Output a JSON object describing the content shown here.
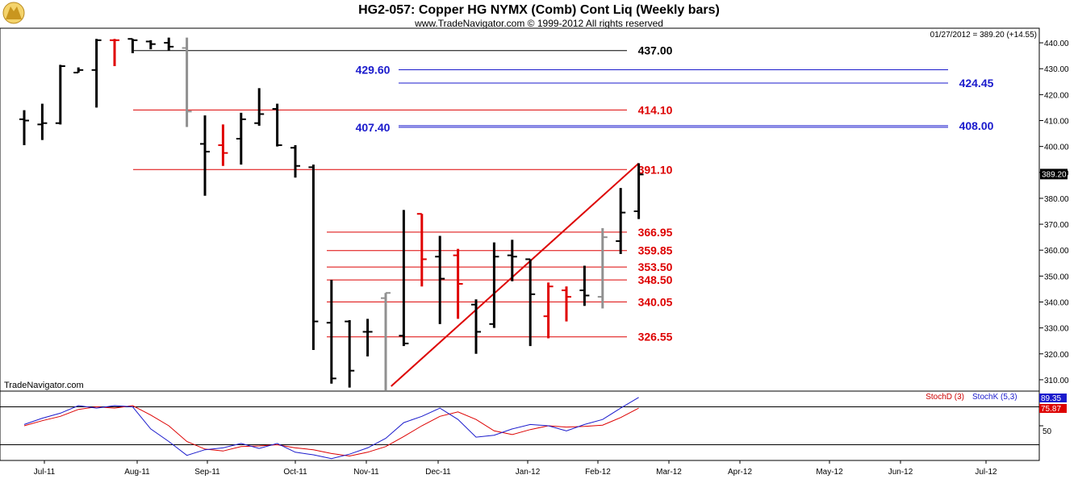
{
  "chart_data": {
    "type": "ohlc",
    "title": "HG2-057:  Copper HG NYMX (Comb) Cont Liq  (Weekly bars)",
    "subtitle": "www.TradeNavigator.com © 1999-2012 All rights reserved",
    "watermark": "TradeNavigator.com",
    "quote_line": "01/27/2012 = 389.20 (+14.55)",
    "last_price_label": "389.20",
    "price_axis": {
      "ylim": [
        305,
        445
      ],
      "ticks": [
        "440.00",
        "430.00",
        "420.00",
        "410.00",
        "400.00",
        "390.00",
        "380.00",
        "370.00",
        "360.00",
        "350.00",
        "340.00",
        "330.00",
        "320.00",
        "310.00"
      ]
    },
    "x_axis": {
      "labels": [
        "Jul-11",
        "Aug-11",
        "Sep-11",
        "Oct-11",
        "Nov-11",
        "Dec-11",
        "Jan-12",
        "Feb-12",
        "Mar-12",
        "Apr-12",
        "May-12",
        "Jun-12",
        "Jul-12"
      ]
    },
    "bars": [
      {
        "h": 414.0,
        "l": 400.5,
        "o": 410.5,
        "c": 410.0,
        "color": "black"
      },
      {
        "h": 416.5,
        "l": 402.5,
        "o": 408.5,
        "c": 409.0,
        "color": "black"
      },
      {
        "h": 431.5,
        "l": 408.5,
        "o": 409.0,
        "c": 431.0,
        "color": "black"
      },
      {
        "h": 430.5,
        "l": 428.5,
        "o": 428.5,
        "c": 429.5,
        "color": "black"
      },
      {
        "h": 441.5,
        "l": 415.0,
        "o": 429.5,
        "c": 441.0,
        "color": "black"
      },
      {
        "h": 441.5,
        "l": 431.0,
        "o": 441.0,
        "c": 441.0,
        "color": "red"
      },
      {
        "h": 441.5,
        "l": 436.0,
        "o": 441.5,
        "c": 441.0,
        "color": "black"
      },
      {
        "h": 441.0,
        "l": 437.5,
        "o": 440.5,
        "c": 439.5,
        "color": "black"
      },
      {
        "h": 442.0,
        "l": 437.0,
        "o": 440.0,
        "c": 438.5,
        "color": "black"
      },
      {
        "h": 442.0,
        "l": 407.5,
        "o": 438.0,
        "c": 413.5,
        "color": "gray"
      },
      {
        "h": 412.0,
        "l": 381.0,
        "o": 401.0,
        "c": 398.0,
        "color": "black"
      },
      {
        "h": 408.5,
        "l": 392.5,
        "o": 400.5,
        "c": 397.5,
        "color": "red"
      },
      {
        "h": 413.0,
        "l": 393.0,
        "o": 403.0,
        "c": 410.5,
        "color": "black"
      },
      {
        "h": 422.5,
        "l": 408.0,
        "o": 409.0,
        "c": 412.5,
        "color": "black"
      },
      {
        "h": 416.5,
        "l": 400.0,
        "o": 414.5,
        "c": 400.5,
        "color": "black"
      },
      {
        "h": 400.5,
        "l": 388.0,
        "o": 399.5,
        "c": 392.5,
        "color": "black"
      },
      {
        "h": 393.0,
        "l": 321.5,
        "o": 392.0,
        "c": 332.5,
        "color": "black"
      },
      {
        "h": 348.5,
        "l": 308.5,
        "o": 332.0,
        "c": 310.5,
        "color": "black"
      },
      {
        "h": 333.0,
        "l": 307.0,
        "o": 332.5,
        "c": 313.5,
        "color": "black"
      },
      {
        "h": 333.5,
        "l": 319.0,
        "o": 328.5,
        "c": 328.5,
        "color": "black"
      },
      {
        "h": 343.5,
        "l": 305.0,
        "o": 341.5,
        "c": 343.5,
        "color": "gray"
      },
      {
        "h": 375.5,
        "l": 323.0,
        "o": 327.0,
        "c": 324.0,
        "color": "black"
      },
      {
        "h": 374.0,
        "l": 346.0,
        "o": 374.0,
        "c": 356.5,
        "color": "red"
      },
      {
        "h": 365.5,
        "l": 331.5,
        "o": 357.5,
        "c": 349.0,
        "color": "black"
      },
      {
        "h": 360.5,
        "l": 333.5,
        "o": 358.0,
        "c": 347.0,
        "color": "red"
      },
      {
        "h": 341.0,
        "l": 320.0,
        "o": 339.0,
        "c": 328.5,
        "color": "black"
      },
      {
        "h": 363.0,
        "l": 330.0,
        "o": 331.5,
        "c": 357.5,
        "color": "black"
      },
      {
        "h": 364.0,
        "l": 348.0,
        "o": 358.0,
        "c": 357.5,
        "color": "black"
      },
      {
        "h": 356.5,
        "l": 323.0,
        "o": 356.5,
        "c": 343.0,
        "color": "black"
      },
      {
        "h": 347.5,
        "l": 326.0,
        "o": 334.5,
        "c": 346.0,
        "color": "red"
      },
      {
        "h": 346.0,
        "l": 332.5,
        "o": 344.5,
        "c": 342.0,
        "color": "red"
      },
      {
        "h": 354.0,
        "l": 338.5,
        "o": 344.5,
        "c": 342.5,
        "color": "black"
      },
      {
        "h": 368.5,
        "l": 337.5,
        "o": 342.0,
        "c": 365.0,
        "color": "gray"
      },
      {
        "h": 384.0,
        "l": 358.5,
        "o": 363.5,
        "c": 374.5,
        "color": "black"
      },
      {
        "h": 393.5,
        "l": 372.0,
        "o": 375.0,
        "c": 389.2,
        "color": "black"
      }
    ],
    "levels": [
      {
        "price": 437.0,
        "label": "437.00",
        "color": "#000000"
      },
      {
        "price": 429.6,
        "label": "429.60",
        "color": "#1a1acc"
      },
      {
        "price": 424.45,
        "label": "424.45",
        "color": "#1a1acc"
      },
      {
        "price": 414.1,
        "label": "414.10",
        "color": "#dd0000"
      },
      {
        "price": 407.4,
        "label": "407.40",
        "color": "#1a1acc"
      },
      {
        "price": 408.0,
        "label": "408.00",
        "color": "#1a1acc"
      },
      {
        "price": 391.1,
        "label": "391.10",
        "color": "#dd0000"
      },
      {
        "price": 366.95,
        "label": "366.95",
        "color": "#dd0000"
      },
      {
        "price": 359.85,
        "label": "359.85",
        "color": "#dd0000"
      },
      {
        "price": 353.5,
        "label": "353.50",
        "color": "#dd0000"
      },
      {
        "price": 348.5,
        "label": "348.50",
        "color": "#dd0000"
      },
      {
        "price": 340.05,
        "label": "340.05",
        "color": "#dd0000"
      },
      {
        "price": 326.55,
        "label": "326.55",
        "color": "#dd0000"
      }
    ],
    "trendline": {
      "from": {
        "bar": 20.3,
        "price": 307.5
      },
      "to": {
        "bar": 34,
        "price": 393.5
      },
      "color": "#dd0000"
    },
    "stochastic": {
      "legend_d": "StochD (3)",
      "legend_k": "StochK (5,3)",
      "value_k": "89.35",
      "value_d": "75.87",
      "tick_50": "50",
      "ylim": [
        0,
        100
      ],
      "k": [
        52,
        62,
        70,
        82,
        78,
        82,
        80,
        45,
        25,
        3,
        12,
        15,
        22,
        14,
        22,
        8,
        4,
        -2,
        5,
        15,
        30,
        55,
        65,
        78,
        60,
        32,
        35,
        45,
        52,
        50,
        42,
        52,
        60,
        78,
        95
      ],
      "d": [
        50,
        58,
        65,
        76,
        80,
        78,
        82,
        67,
        50,
        25,
        13,
        10,
        17,
        18,
        20,
        15,
        12,
        6,
        2,
        8,
        17,
        33,
        50,
        65,
        72,
        60,
        42,
        36,
        44,
        50,
        48,
        49,
        51,
        63,
        78
      ]
    }
  }
}
